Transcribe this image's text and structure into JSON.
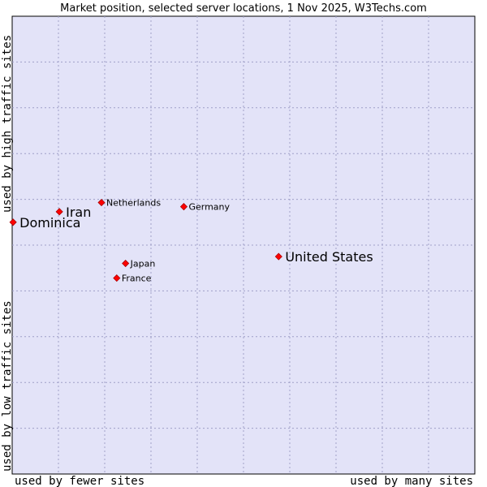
{
  "chart_data": {
    "type": "scatter",
    "title": "Market position, selected server locations, 1 Nov 2025, W3Techs.com",
    "xlabel_left": "used by fewer sites",
    "xlabel_right": "used by many sites",
    "ylabel_bottom": "used by low traffic sites",
    "ylabel_top": "used by high traffic sites",
    "xlim": [
      0,
      100
    ],
    "ylim": [
      0,
      100
    ],
    "grid": true,
    "colors": {
      "plot_bg": "#e3e3f8",
      "grid": "#a0a0c8",
      "marker": "#ff0000",
      "marker_edge": "#aa0000"
    },
    "points": [
      {
        "label": "United States",
        "x": 57.6,
        "y": 47.5,
        "size": "large"
      },
      {
        "label": "Iran",
        "x": 10.2,
        "y": 57.3,
        "size": "large"
      },
      {
        "label": "Dominica",
        "x": 0.2,
        "y": 55.0,
        "size": "large"
      },
      {
        "label": "Netherlands",
        "x": 19.3,
        "y": 59.3,
        "size": "small"
      },
      {
        "label": "Germany",
        "x": 37.1,
        "y": 58.4,
        "size": "small"
      },
      {
        "label": "Japan",
        "x": 24.5,
        "y": 46.0,
        "size": "small"
      },
      {
        "label": "France",
        "x": 22.6,
        "y": 42.8,
        "size": "small"
      }
    ]
  }
}
